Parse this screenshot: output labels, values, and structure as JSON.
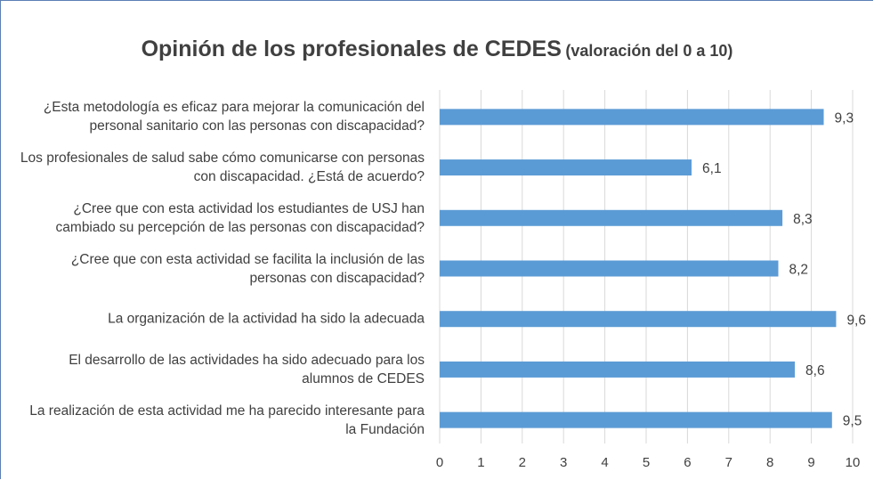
{
  "chart_data": {
    "type": "barh",
    "title": "Opinión de los profesionales de CEDES",
    "subtitle": "(valoración del 0 a 10)",
    "categories": [
      "¿Esta metodología es eficaz para mejorar la comunicación del personal sanitario con las personas con discapacidad?",
      "Los profesionales de salud sabe cómo comunicarse con personas con discapacidad. ¿Está de acuerdo?",
      "¿Cree que con esta actividad los estudiantes de USJ han cambiado su percepción de las personas con discapacidad?",
      "¿Cree que con esta actividad se facilita la inclusión de las personas con discapacidad?",
      "La organización de la actividad ha sido la adecuada",
      "El desarrollo de las actividades ha sido adecuado para los alumnos de CEDES",
      "La realización de esta actividad me ha parecido interesante para la Fundación"
    ],
    "values": [
      9.3,
      6.1,
      8.3,
      8.2,
      9.6,
      8.6,
      9.5
    ],
    "value_labels": [
      "9,3",
      "6,1",
      "8,3",
      "8,2",
      "9,6",
      "8,6",
      "9,5"
    ],
    "color": "#5b9bd5",
    "xlim": [
      0,
      10
    ],
    "xticks": [
      0,
      1,
      2,
      3,
      4,
      5,
      6,
      7,
      8,
      9,
      10
    ],
    "grid": true
  }
}
